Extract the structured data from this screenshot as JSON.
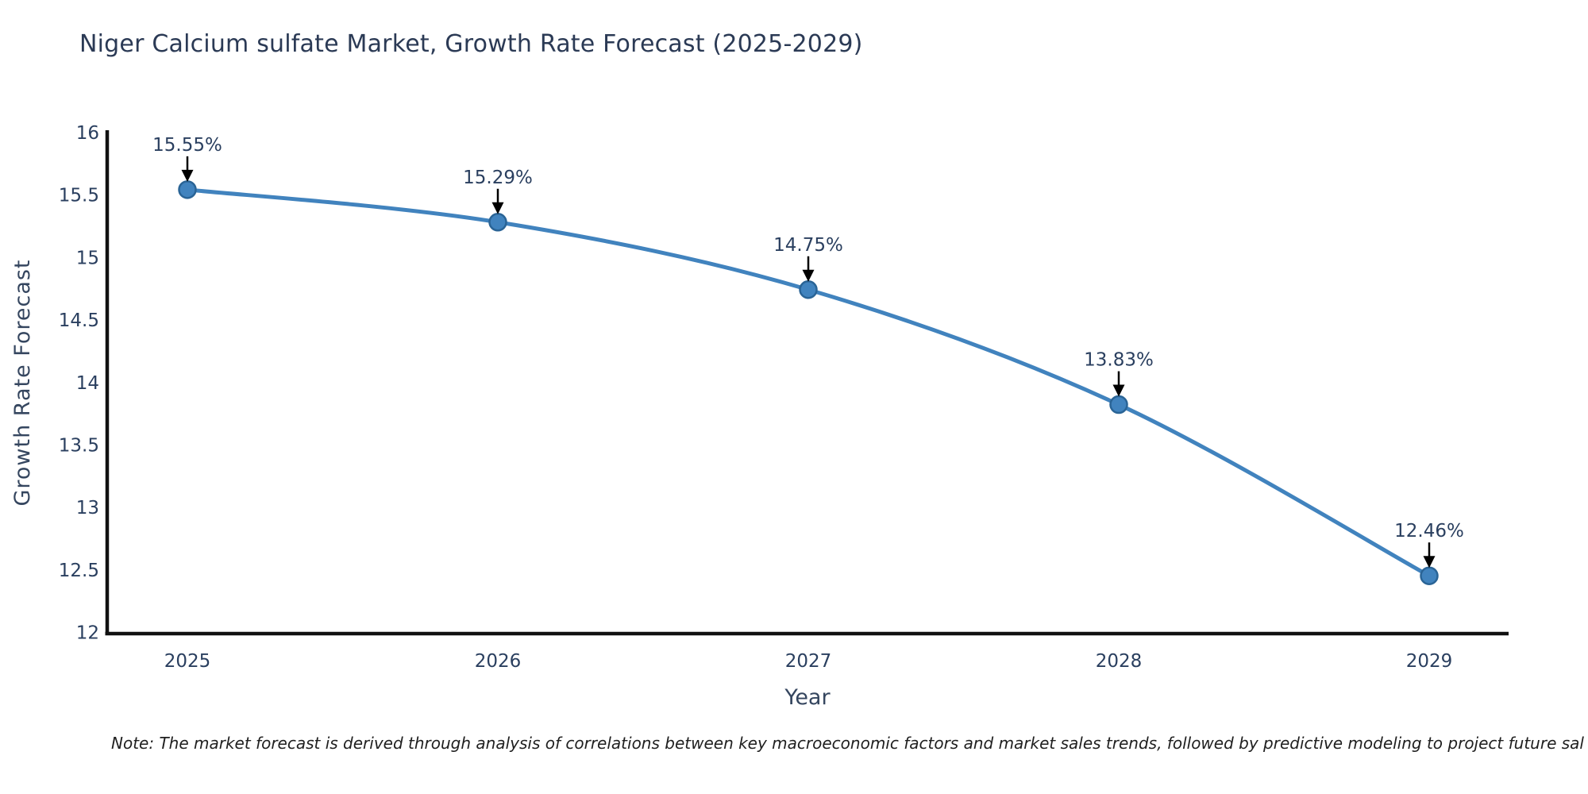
{
  "page": {
    "title": "Niger Calcium sulfate Market, Growth Rate Forecast (2025-2029)",
    "note": "Note: The market forecast is derived through analysis of correlations between key macroeconomic factors and market sales trends, followed by predictive modeling to project future sal"
  },
  "chart_data": {
    "type": "line",
    "title": "Niger Calcium sulfate Market, Growth Rate Forecast (2025-2029)",
    "xlabel": "Year",
    "ylabel": "Growth Rate Forecast",
    "x": [
      2025,
      2026,
      2027,
      2028,
      2029
    ],
    "values": [
      15.55,
      15.29,
      14.75,
      13.83,
      12.46
    ],
    "point_labels": [
      "15.55%",
      "15.29%",
      "14.75%",
      "13.83%",
      "12.46%"
    ],
    "xtick_labels": [
      "2025",
      "2026",
      "2027",
      "2028",
      "2029"
    ],
    "yticks": [
      12,
      12.5,
      13,
      13.5,
      14,
      14.5,
      15,
      15.5,
      16
    ],
    "ytick_labels": [
      "12",
      "12.5",
      "13",
      "13.5",
      "14",
      "14.5",
      "15",
      "15.5",
      "16"
    ],
    "ylim": [
      12,
      16
    ],
    "grid": false,
    "legend_position": "none",
    "line_color": "#4183be",
    "marker_fill_color": "#4183be",
    "marker_edge_color": "#2a6496",
    "arrow_color": "#000000",
    "axis_color": "#111111",
    "tick_text_color": "#2a3f5f",
    "annotation_text_color": "#2a3f5f"
  }
}
